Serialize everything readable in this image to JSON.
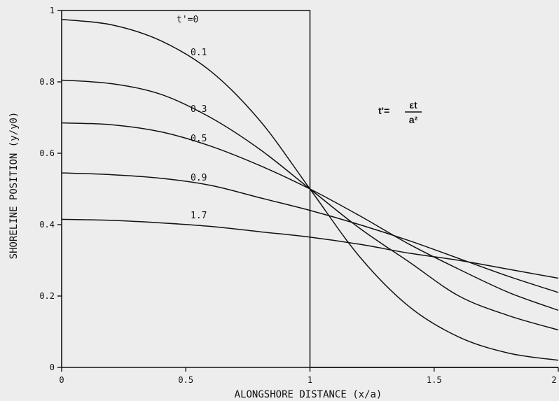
{
  "chart_data": {
    "type": "line",
    "title": "",
    "xlabel": "ALONGSHORE DISTANCE (x/a)",
    "ylabel": "SHORELINE POSITION (y/y0)",
    "xlim": [
      0,
      2
    ],
    "ylim": [
      0,
      1
    ],
    "x_ticks": [
      0,
      0.5,
      1,
      1.5,
      2
    ],
    "x_tick_labels": [
      "0",
      "0.5",
      "1",
      "1.5",
      "2"
    ],
    "y_ticks": [
      0,
      0.2,
      0.4,
      0.6,
      0.8,
      1
    ],
    "y_tick_labels": [
      "0",
      "0.2",
      "0.4",
      "0.6",
      "0.8",
      "1"
    ],
    "initial_profile": {
      "name": "t'=0",
      "x": [
        0,
        1,
        1,
        2
      ],
      "y": [
        1,
        1,
        0,
        0
      ]
    },
    "series": [
      {
        "name": "0.1",
        "x": [
          0,
          0.2,
          0.4,
          0.6,
          0.8,
          1.0,
          1.2,
          1.4,
          1.6,
          1.8,
          2.0
        ],
        "y": [
          0.975,
          0.96,
          0.915,
          0.83,
          0.69,
          0.5,
          0.31,
          0.17,
          0.085,
          0.04,
          0.02
        ]
      },
      {
        "name": "0.3",
        "x": [
          0,
          0.2,
          0.4,
          0.6,
          0.8,
          1.0,
          1.2,
          1.4,
          1.6,
          1.8,
          2.0
        ],
        "y": [
          0.805,
          0.795,
          0.765,
          0.7,
          0.61,
          0.5,
          0.39,
          0.295,
          0.2,
          0.145,
          0.105
        ]
      },
      {
        "name": "0.5",
        "x": [
          0,
          0.2,
          0.4,
          0.6,
          0.8,
          1.0,
          1.2,
          1.4,
          1.6,
          1.8,
          2.0
        ],
        "y": [
          0.685,
          0.68,
          0.66,
          0.62,
          0.565,
          0.5,
          0.425,
          0.345,
          0.275,
          0.21,
          0.16
        ]
      },
      {
        "name": "0.9",
        "x": [
          0,
          0.2,
          0.4,
          0.6,
          0.8,
          1.0,
          1.2,
          1.4,
          1.6,
          1.8,
          2.0
        ],
        "y": [
          0.545,
          0.54,
          0.53,
          0.51,
          0.475,
          0.44,
          0.4,
          0.355,
          0.305,
          0.255,
          0.21
        ]
      },
      {
        "name": "1.7",
        "x": [
          0,
          0.2,
          0.4,
          0.6,
          0.8,
          1.0,
          1.2,
          1.4,
          1.6,
          1.8,
          2.0
        ],
        "y": [
          0.415,
          0.412,
          0.405,
          0.395,
          0.38,
          0.365,
          0.345,
          0.32,
          0.3,
          0.275,
          0.25
        ]
      }
    ],
    "legend": "labels on curves",
    "annotation": {
      "lhs": "t'=",
      "numerator": "εt",
      "denominator": "a²"
    },
    "grid": false
  },
  "colors": {
    "background": "#ededed",
    "ink": "#111111"
  }
}
